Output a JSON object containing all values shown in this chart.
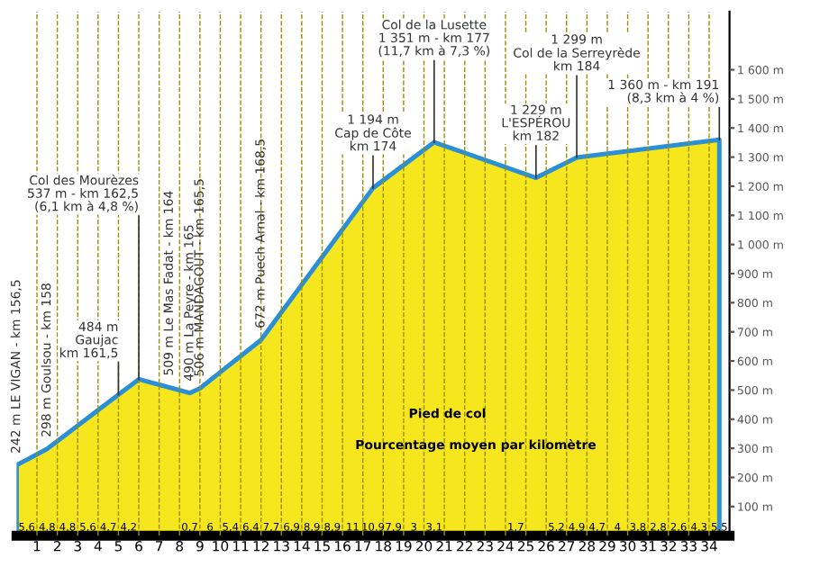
{
  "chart_data": {
    "type": "area",
    "series": [
      {
        "color": "#f5e61e",
        "x": [
          0,
          1.5,
          5,
          6,
          7.5,
          8.5,
          9,
          12,
          17.5,
          20.5,
          25.5,
          27.5,
          34.5
        ],
        "values": [
          242,
          298,
          484,
          537,
          509,
          490,
          506,
          672,
          1194,
          1351,
          1229,
          1299,
          1360
        ]
      }
    ],
    "xlim": [
      0,
      35
    ],
    "xticks": [
      1,
      2,
      3,
      4,
      5,
      6,
      7,
      8,
      9,
      10,
      11,
      12,
      13,
      14,
      15,
      16,
      17,
      18,
      19,
      20,
      21,
      22,
      23,
      24,
      25,
      26,
      27,
      28,
      29,
      30,
      31,
      32,
      33,
      34
    ],
    "ylim": [
      0,
      1800
    ],
    "yticks": [
      {
        "value": 100,
        "label": "100 m"
      },
      {
        "value": 200,
        "label": "200 m"
      },
      {
        "value": 300,
        "label": "300 m"
      },
      {
        "value": 400,
        "label": "400 m"
      },
      {
        "value": 500,
        "label": "500 m"
      },
      {
        "value": 600,
        "label": "600 m"
      },
      {
        "value": 700,
        "label": "700 m"
      },
      {
        "value": 800,
        "label": "800 m"
      },
      {
        "value": 900,
        "label": "900 m"
      },
      {
        "value": 1000,
        "label": "1 000 m"
      },
      {
        "value": 1100,
        "label": "1 100 m"
      },
      {
        "value": 1200,
        "label": "1 200 m"
      },
      {
        "value": 1300,
        "label": "1 300 m"
      },
      {
        "value": 1400,
        "label": "1 400 m"
      },
      {
        "value": 1500,
        "label": "1 500 m"
      },
      {
        "value": 1600,
        "label": "1 600 m"
      }
    ],
    "grid": "x",
    "annotations": [
      {
        "text": "242 m LE VIGAN - km 156,5",
        "x": 0,
        "y": 242
      },
      {
        "text": "298 m Goulsou - km 158",
        "x": 1.5,
        "y": 298
      },
      {
        "text": "509 m Le Mas Fadat - km 164",
        "x": 7.5,
        "y": 509
      },
      {
        "text": "490 m La Peyre - km 165",
        "x": 8.5,
        "y": 490
      },
      {
        "text": "506 m MANDAGOUT - km 165,5",
        "x": 9,
        "y": 506
      },
      {
        "text": "672 m Puech Arnal - km 168,5",
        "x": 12,
        "y": 672
      },
      {
        "text": "484 m\nGaujac\nkm 161,5",
        "x": 5,
        "y": 484
      },
      {
        "text": "Col des Mourèzes\n537 m - km 162,5\n(6,1 km à 4,8 %)",
        "x": 6,
        "y": 537
      },
      {
        "text": "1 194 m\nCap de Côte\nkm 174",
        "x": 17.5,
        "y": 1194
      },
      {
        "text": "Col de la Lusette\n1 351 m - km 177\n(11,7 km à 7,3 %)",
        "x": 20.5,
        "y": 1351
      },
      {
        "text": "1 229 m\nL'ESPÉROU\nkm 182",
        "x": 25.5,
        "y": 1229
      },
      {
        "text": "1 299 m\nCol de la Serreyrède\nkm 184",
        "x": 27.5,
        "y": 1299
      },
      {
        "text": "1 360 m - km 191\n(8,3 km à 4 %)",
        "x": 34.5,
        "y": 1360
      },
      "Pied de col",
      "Pourcentage moyen par kilomètre",
      {
        "text": "5,6",
        "x": 0.5,
        "y": 0
      },
      {
        "text": "4,8",
        "x": 1.5,
        "y": 0
      },
      {
        "text": "4,8",
        "x": 2.5,
        "y": 0
      },
      {
        "text": "5,6",
        "x": 3.5,
        "y": 0
      },
      {
        "text": "4,7",
        "x": 4.5,
        "y": 0
      },
      {
        "text": "4,2",
        "x": 5.5,
        "y": 0
      },
      {
        "text": "0,7",
        "x": 8.5,
        "y": 0
      },
      {
        "text": "6",
        "x": 9.5,
        "y": 0
      },
      {
        "text": "5,4",
        "x": 10.5,
        "y": 0
      },
      {
        "text": "6,4",
        "x": 11.5,
        "y": 0
      },
      {
        "text": "7,7",
        "x": 12.5,
        "y": 0
      },
      {
        "text": "6,9",
        "x": 13.5,
        "y": 0
      },
      {
        "text": "8,9",
        "x": 14.5,
        "y": 0
      },
      {
        "text": "8,9",
        "x": 15.5,
        "y": 0
      },
      {
        "text": "11",
        "x": 16.5,
        "y": 0
      },
      {
        "text": "10,9",
        "x": 17.5,
        "y": 0
      },
      {
        "text": "7,9",
        "x": 18.5,
        "y": 0
      },
      {
        "text": "3",
        "x": 19.5,
        "y": 0
      },
      {
        "text": "3,1",
        "x": 20.5,
        "y": 0
      },
      {
        "text": "1,7",
        "x": 24.5,
        "y": 0
      },
      {
        "text": "5,2",
        "x": 26.5,
        "y": 0
      },
      {
        "text": "4,9",
        "x": 27.5,
        "y": 0
      },
      {
        "text": "4,7",
        "x": 28.5,
        "y": 0
      },
      {
        "text": "4",
        "x": 29.5,
        "y": 0
      },
      {
        "text": "3,8",
        "x": 30.5,
        "y": 0
      },
      {
        "text": "2,8",
        "x": 31.5,
        "y": 0
      },
      {
        "text": "2,6",
        "x": 32.5,
        "y": 0
      },
      {
        "text": "4,3",
        "x": 33.5,
        "y": 0
      },
      {
        "text": "5,5",
        "x": 34.5,
        "y": 0
      }
    ]
  }
}
